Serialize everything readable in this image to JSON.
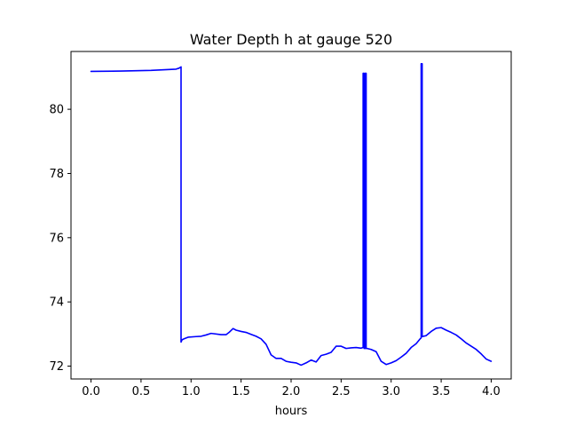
{
  "chart_data": {
    "type": "line",
    "title": "Water Depth h at gauge 520",
    "xlabel": "hours",
    "ylabel": "",
    "xlim": [
      -0.2,
      4.2
    ],
    "ylim": [
      71.6,
      81.8
    ],
    "xticks": [
      0.0,
      0.5,
      1.0,
      1.5,
      2.0,
      2.5,
      3.0,
      3.5,
      4.0
    ],
    "xtick_labels": [
      "0.0",
      "0.5",
      "1.0",
      "1.5",
      "2.0",
      "2.5",
      "3.0",
      "3.5",
      "4.0"
    ],
    "yticks": [
      72,
      74,
      76,
      78,
      80
    ],
    "ytick_labels": [
      "72",
      "74",
      "76",
      "78",
      "80"
    ],
    "grid": false,
    "series": [
      {
        "color": "#0000ff",
        "x": [
          0.0,
          0.3,
          0.6,
          0.85,
          0.88,
          0.9,
          0.9,
          0.91,
          0.93,
          0.97,
          1.05,
          1.1,
          1.15,
          1.2,
          1.3,
          1.35,
          1.38,
          1.42,
          1.45,
          1.5,
          1.55,
          1.6,
          1.65,
          1.7,
          1.75,
          1.8,
          1.85,
          1.9,
          1.95,
          2.0,
          2.05,
          2.1,
          2.15,
          2.2,
          2.25,
          2.3,
          2.35,
          2.4,
          2.45,
          2.5,
          2.55,
          2.6,
          2.65,
          2.7,
          2.72,
          2.72,
          2.73,
          2.73,
          2.74,
          2.74,
          2.75,
          2.75,
          2.76,
          2.8,
          2.85,
          2.9,
          2.95,
          3.0,
          3.05,
          3.1,
          3.15,
          3.2,
          3.25,
          3.29,
          3.3,
          3.3,
          3.31,
          3.31,
          3.35,
          3.4,
          3.45,
          3.5,
          3.55,
          3.6,
          3.65,
          3.7,
          3.75,
          3.8,
          3.85,
          3.9,
          3.95,
          4.0
        ],
        "y": [
          81.18,
          81.19,
          81.21,
          81.25,
          81.28,
          81.32,
          72.75,
          72.82,
          72.85,
          72.9,
          72.92,
          72.93,
          72.97,
          73.02,
          72.98,
          72.98,
          73.05,
          73.17,
          73.12,
          73.08,
          73.05,
          72.99,
          72.93,
          72.85,
          72.68,
          72.35,
          72.24,
          72.24,
          72.15,
          72.12,
          72.1,
          72.03,
          72.1,
          72.19,
          72.13,
          72.33,
          72.37,
          72.43,
          72.62,
          72.62,
          72.55,
          72.57,
          72.58,
          72.56,
          72.58,
          81.12,
          81.12,
          72.55,
          72.55,
          81.12,
          81.12,
          72.55,
          72.55,
          72.52,
          72.45,
          72.15,
          72.05,
          72.1,
          72.17,
          72.28,
          72.4,
          72.58,
          72.7,
          72.85,
          72.88,
          81.42,
          81.42,
          72.92,
          72.95,
          73.08,
          73.18,
          73.2,
          73.12,
          73.05,
          72.97,
          72.85,
          72.72,
          72.62,
          72.52,
          72.38,
          72.22,
          72.15
        ]
      }
    ]
  }
}
